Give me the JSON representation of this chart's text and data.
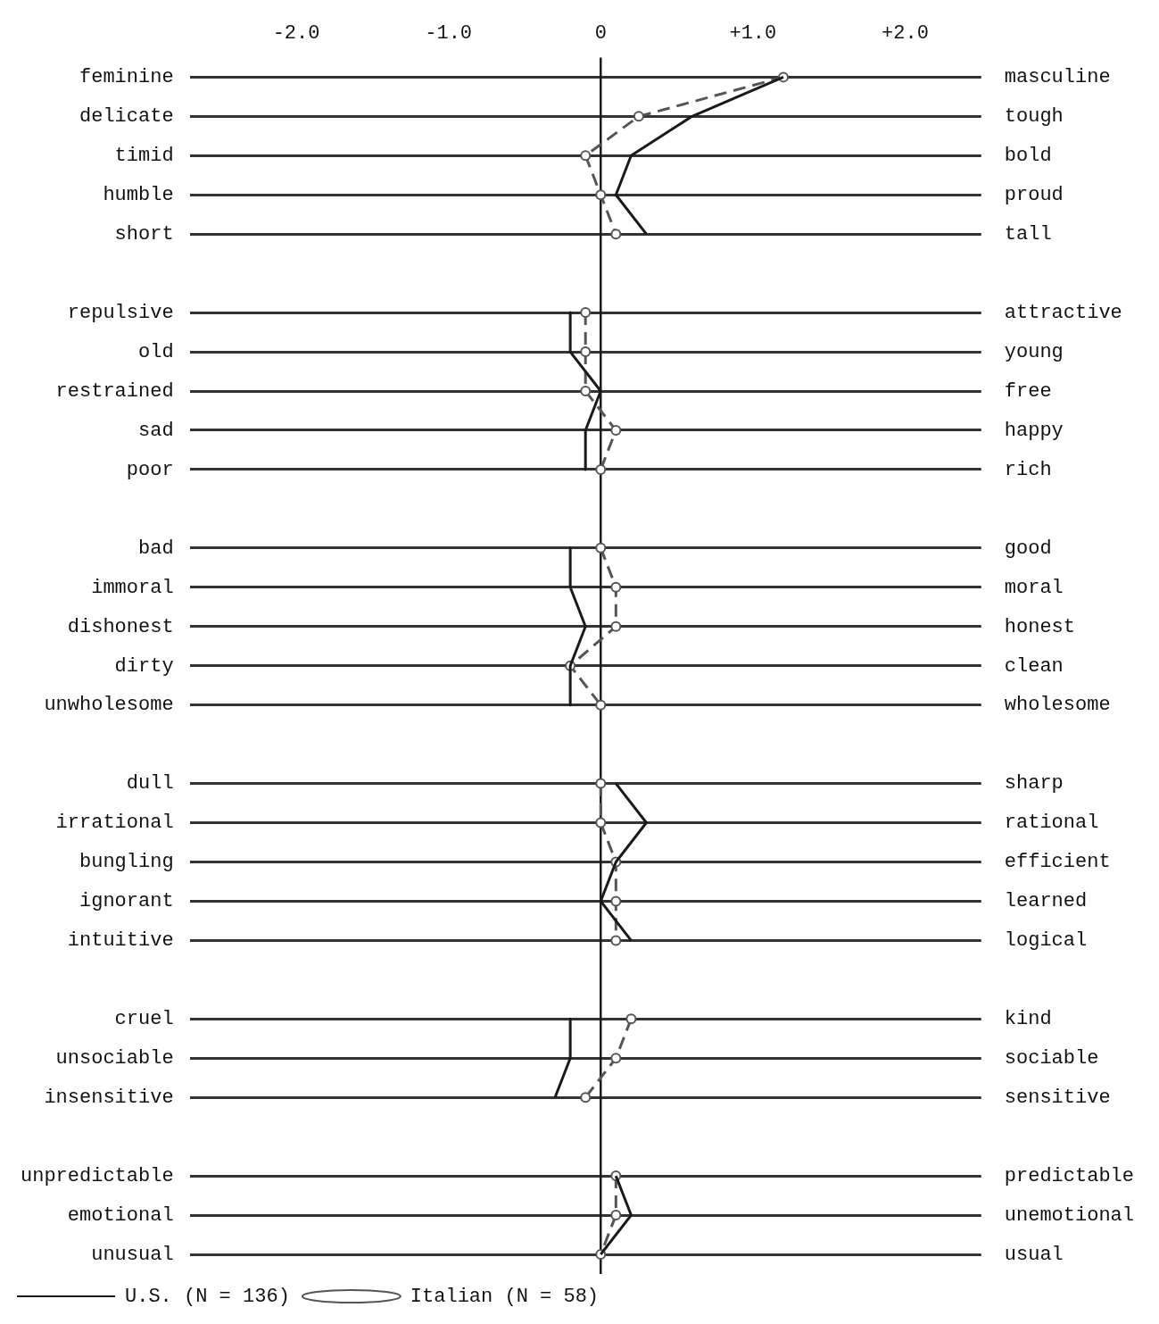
{
  "chart_data": {
    "type": "line",
    "orientation": "horizontal",
    "categories": [
      "feminine",
      "delicate",
      "timid",
      "humble",
      "short",
      null,
      "repulsive",
      "old",
      "restrained",
      "sad",
      "poor",
      null,
      "bad",
      "immoral",
      "dishonest",
      "dirty",
      "unwholesome",
      null,
      "dull",
      "irrational",
      "bungling",
      "ignorant",
      "intuitive",
      null,
      "cruel",
      "unsociable",
      "insensitive",
      null,
      "unpredictable",
      "emotional",
      "unusual"
    ],
    "y2_categories": [
      "masculine",
      "tough",
      "bold",
      "proud",
      "tall",
      null,
      "attractive",
      "young",
      "free",
      "happy",
      "rich",
      null,
      "good",
      "moral",
      "honest",
      "clean",
      "wholesome",
      null,
      "sharp",
      "rational",
      "efficient",
      "learned",
      "logical",
      null,
      "kind",
      "sociable",
      "sensitive",
      null,
      "predictable",
      "unemotional",
      "usual"
    ],
    "series": [
      {
        "name": "U.S. (N = 136)",
        "color": "#1a1a1a",
        "marker": "none",
        "line_style": "solid",
        "values": [
          1.2,
          0.6,
          0.2,
          0.1,
          0.3,
          null,
          -0.2,
          -0.2,
          0.0,
          -0.1,
          -0.1,
          null,
          -0.2,
          -0.2,
          -0.1,
          -0.2,
          -0.2,
          null,
          0.1,
          0.3,
          0.1,
          0.0,
          0.2,
          null,
          -0.2,
          -0.2,
          -0.3,
          null,
          0.1,
          0.2,
          0.0
        ]
      },
      {
        "name": "Italian (N = 58)",
        "color": "#555555",
        "marker": "circle",
        "line_style": "dashed",
        "values": [
          1.2,
          0.25,
          -0.1,
          0.0,
          0.1,
          null,
          -0.1,
          -0.1,
          -0.1,
          0.1,
          0.0,
          null,
          0.0,
          0.1,
          0.1,
          -0.2,
          0.0,
          null,
          0.0,
          0.0,
          0.1,
          0.1,
          0.1,
          null,
          0.2,
          0.1,
          -0.1,
          null,
          0.1,
          0.1,
          0.0
        ]
      }
    ],
    "xlim": [
      -2.7,
      2.5
    ],
    "xticks": [
      {
        "value": -2,
        "label": "-2.0"
      },
      {
        "value": -1,
        "label": "-1.0"
      },
      0,
      {
        "value": 1,
        "label": "+1.0"
      },
      {
        "value": 2,
        "label": "+2.0"
      }
    ],
    "ref_lines": [
      {
        "axis": "x",
        "value": 0,
        "color": "#1a1a1a",
        "line_style": "solid"
      }
    ],
    "grid": "y",
    "legend": "bottom left"
  }
}
